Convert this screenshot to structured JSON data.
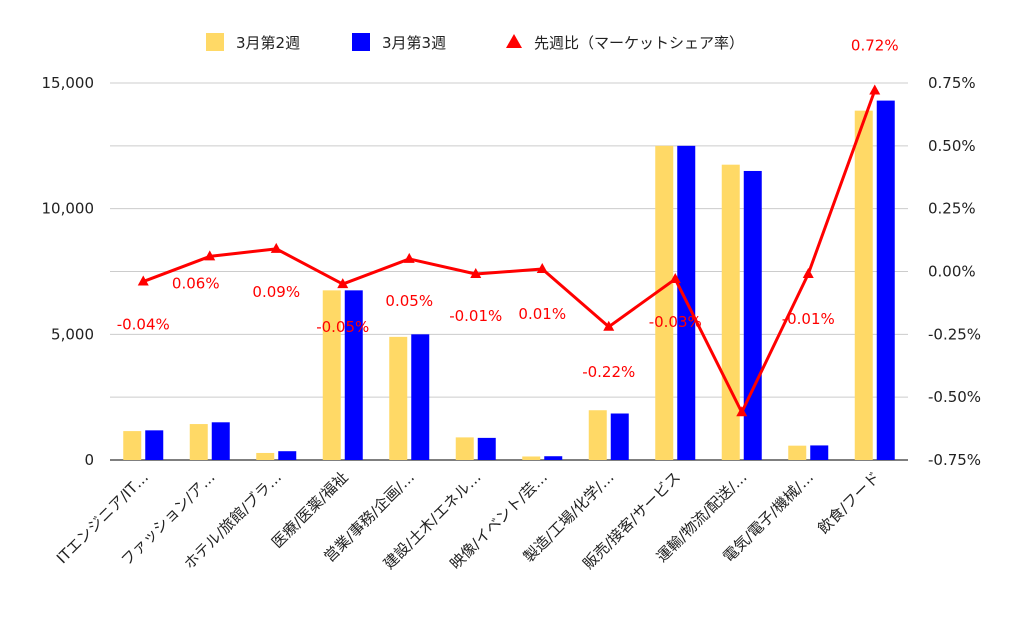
{
  "chart_data": {
    "type": "bar",
    "categories": [
      "ITエンジニア/IT…",
      "ファッション/ア…",
      "ホテル/旅館/ブラ…",
      "医療/医薬/福祉",
      "営業/事務/企画/…",
      "建設/土木/エネル…",
      "映像/イベント/芸…",
      "製造/工場/化学/…",
      "販売/接客/サービス",
      "運輸/物流/配送/…",
      "電気/電子/機械/…",
      "飲食/フード"
    ],
    "series": [
      {
        "name": "3月第2週",
        "type": "bar",
        "axis": "left",
        "color": "#ffd966",
        "values": [
          1150,
          1430,
          280,
          6750,
          4900,
          900,
          140,
          1980,
          12500,
          11750,
          570,
          13900
        ]
      },
      {
        "name": "3月第3週",
        "type": "bar",
        "axis": "left",
        "color": "#0000ff",
        "values": [
          1180,
          1500,
          350,
          6750,
          5000,
          880,
          150,
          1850,
          12500,
          11500,
          580,
          14300
        ]
      },
      {
        "name": "先週比（マーケットシェア率）",
        "type": "line",
        "axis": "right",
        "color": "#ff0000",
        "marker": "triangle",
        "values": [
          -0.04,
          0.06,
          0.09,
          -0.05,
          0.05,
          -0.01,
          0.01,
          -0.22,
          -0.03,
          -0.56,
          -0.01,
          0.72
        ],
        "labels": [
          "-0.04%",
          "0.06%",
          "0.09%",
          "-0.05%",
          "0.05%",
          "-0.01%",
          "0.01%",
          "-0.22%",
          "-0.03%",
          "",
          "-0.01%",
          "0.72%"
        ]
      }
    ],
    "y_left": {
      "ylim": [
        0,
        15000
      ],
      "ticks": [
        0,
        5000,
        10000,
        15000
      ],
      "tick_labels": [
        "0",
        "5,000",
        "10,000",
        "15,000"
      ]
    },
    "y_right": {
      "ylim": [
        -0.75,
        0.75
      ],
      "ticks": [
        -0.75,
        -0.5,
        -0.25,
        0,
        0.25,
        0.5,
        0.75
      ],
      "tick_labels": [
        "-0.75%",
        "-0.50%",
        "-0.25%",
        "0.00%",
        "0.25%",
        "0.50%",
        "0.75%"
      ]
    },
    "grid": true,
    "legend": {
      "position": "top"
    }
  }
}
